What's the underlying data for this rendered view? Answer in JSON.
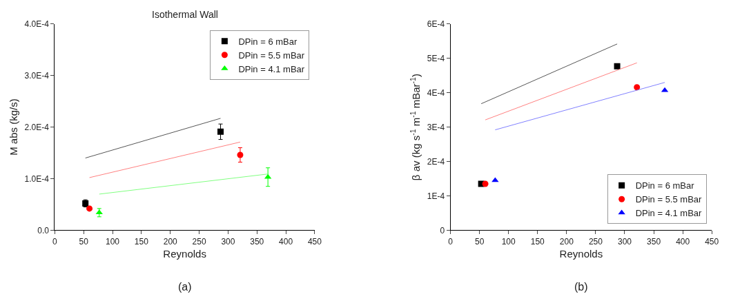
{
  "chart_data": [
    {
      "type": "scatter",
      "title": "Isothermal Wall",
      "xlabel": "Reynolds",
      "ylabel": "M abs (kg/s)",
      "xlim": [
        0,
        450
      ],
      "xticks": [
        0,
        50,
        100,
        150,
        200,
        250,
        300,
        350,
        400,
        450
      ],
      "ylim": [
        0,
        0.0004
      ],
      "yticks": [
        {
          "value": 0,
          "label": "0.0"
        },
        {
          "value": 0.0001,
          "label": "1.0E-4"
        },
        {
          "value": 0.0002,
          "label": "2.0E-4"
        },
        {
          "value": 0.0003,
          "label": "3.0E-4"
        },
        {
          "value": 0.0004,
          "label": "4.0E-4"
        }
      ],
      "legend": "top right",
      "annotations": [
        "(a)"
      ],
      "series": [
        {
          "name": "DPin = 6 mBar",
          "color": "#000000",
          "marker": "square",
          "x": [
            53,
            287
          ],
          "values": [
            5.2e-05,
            0.000191
          ],
          "errors": [
            7e-06,
            1.5e-05
          ]
        },
        {
          "name": "DPin = 5.5 mBar",
          "color": "#ff0000",
          "marker": "circle",
          "x": [
            60,
            321
          ],
          "values": [
            4.2e-05,
            0.000146
          ],
          "errors": [
            null,
            1.4e-05
          ]
        },
        {
          "name": "DPin = 4.1 mBar",
          "color": "#00ff00",
          "marker": "triangle",
          "x": [
            77,
            369
          ],
          "values": [
            3.4e-05,
            0.000103
          ],
          "errors": [
            8e-06,
            1.8e-05
          ]
        },
        {
          "type": "line",
          "color": "#555555",
          "x": [
            53,
            287
          ],
          "values": [
            0.00014,
            0.000217
          ]
        },
        {
          "type": "line",
          "color": "#ff8080",
          "x": [
            60,
            321
          ],
          "values": [
            0.000102,
            0.000171
          ]
        },
        {
          "type": "line",
          "color": "#80ff80",
          "x": [
            77,
            369
          ],
          "values": [
            7e-05,
            0.000109
          ]
        }
      ]
    },
    {
      "type": "scatter",
      "xlabel": "Reynolds",
      "ylabel": "β av (kg s$^{-1}$ m$^{-1}$ mBar$^{-1}$)",
      "xlim": [
        0,
        450
      ],
      "xticks": [
        0,
        50,
        100,
        150,
        200,
        250,
        300,
        350,
        400,
        450
      ],
      "ylim": [
        0,
        0.0006
      ],
      "yticks": [
        {
          "value": 0,
          "label": "0"
        },
        {
          "value": 0.0001,
          "label": "1E-4"
        },
        {
          "value": 0.0002,
          "label": "2E-4"
        },
        {
          "value": 0.0003,
          "label": "3E-4"
        },
        {
          "value": 0.0004,
          "label": "4E-4"
        },
        {
          "value": 0.0005,
          "label": "5E-4"
        },
        {
          "value": 0.0006,
          "label": "6E-4"
        }
      ],
      "legend": "bottom right",
      "annotations": [
        "(b)"
      ],
      "series": [
        {
          "name": "DPin = 6 mBar",
          "color": "#000000",
          "marker": "square",
          "x": [
            53,
            287
          ],
          "values": [
            0.000135,
            0.000477
          ]
        },
        {
          "name": "DPin = 5.5 mBar",
          "color": "#ff0000",
          "marker": "circle",
          "x": [
            60,
            321
          ],
          "values": [
            0.000135,
            0.000416
          ]
        },
        {
          "name": "DPin = 4.1 mBar",
          "color": "#0000ff",
          "marker": "triangle",
          "x": [
            77,
            369
          ],
          "values": [
            0.000145,
            0.000407
          ]
        },
        {
          "type": "line",
          "color": "#555555",
          "x": [
            53,
            287
          ],
          "values": [
            0.000368,
            0.000542
          ]
        },
        {
          "type": "line",
          "color": "#ff8080",
          "x": [
            60,
            321
          ],
          "values": [
            0.000321,
            0.000487
          ]
        },
        {
          "type": "line",
          "color": "#8080ff",
          "x": [
            77,
            369
          ],
          "values": [
            0.000292,
            0.00043
          ]
        }
      ]
    }
  ]
}
